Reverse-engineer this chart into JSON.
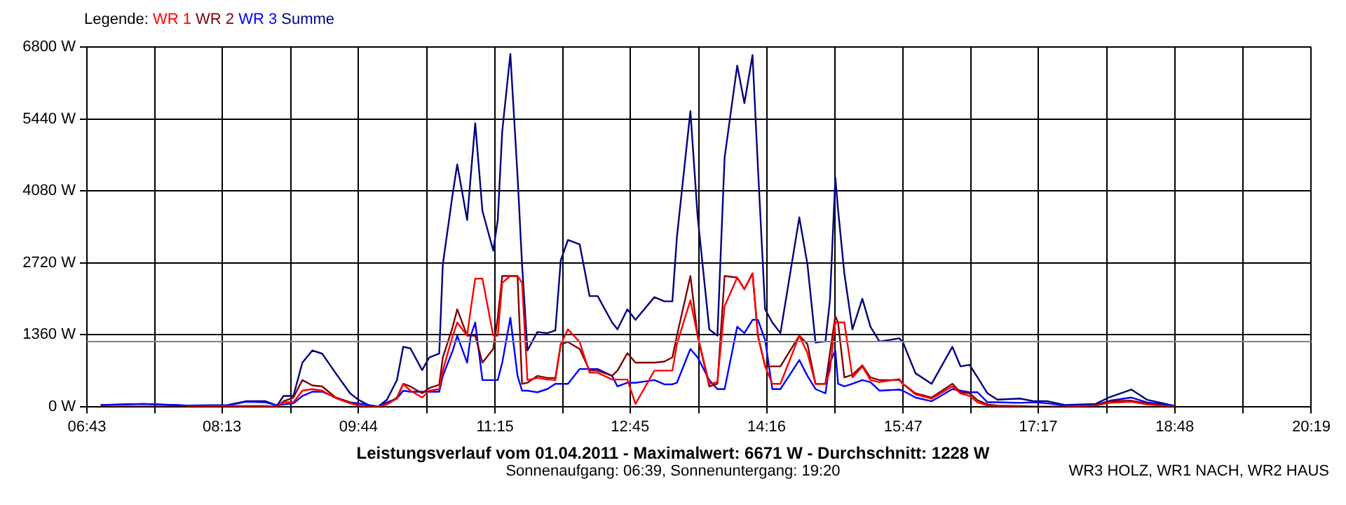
{
  "chart_data": {
    "type": "line",
    "title": "Leistungsverlauf vom 01.04.2011 - Maximalwert: 6671 W - Durchschnitt: 1228 W",
    "subtitle": "Sonnenaufgang: 06:39, Sonnenuntergang: 19:20",
    "annotations": [
      "WR3 HOLZ, WR1 NACH, WR2 HAUS"
    ],
    "legend_title": "Legende:",
    "legend": "top left",
    "grid": true,
    "xlim": [
      6.7167,
      20.3167
    ],
    "xticks": [
      {
        "value": 6.7167,
        "label": "06:43"
      },
      {
        "value": 7.4722,
        "label": null
      },
      {
        "value": 8.2167,
        "label": "08:13"
      },
      {
        "value": 8.9833,
        "label": null
      },
      {
        "value": 9.7333,
        "label": "09:44"
      },
      {
        "value": 10.4944,
        "label": null
      },
      {
        "value": 11.25,
        "label": "11:15"
      },
      {
        "value": 12.0056,
        "label": null
      },
      {
        "value": 12.75,
        "label": "12:45"
      },
      {
        "value": 13.5167,
        "label": null
      },
      {
        "value": 14.2667,
        "label": "14:16"
      },
      {
        "value": 15.0278,
        "label": null
      },
      {
        "value": 15.7833,
        "label": "15:47"
      },
      {
        "value": 16.5389,
        "label": null
      },
      {
        "value": 17.2833,
        "label": "17:17"
      },
      {
        "value": 18.05,
        "label": null
      },
      {
        "value": 18.8,
        "label": "18:48"
      },
      {
        "value": 19.5611,
        "label": null
      },
      {
        "value": 20.3167,
        "label": "20:19"
      }
    ],
    "ylim": [
      0,
      6800
    ],
    "yticks": [
      {
        "value": 0,
        "label": "0 W"
      },
      {
        "value": 1360,
        "label": "1360 W"
      },
      {
        "value": 2720,
        "label": "2720 W"
      },
      {
        "value": 4080,
        "label": "4080 W"
      },
      {
        "value": 5440,
        "label": "5440 W"
      },
      {
        "value": 6800,
        "label": "6800 W"
      }
    ],
    "ref_lines": [
      {
        "axis": "y",
        "value": 1228,
        "color": "#808080"
      }
    ],
    "x": [
      6.87,
      7.34,
      7.81,
      8.28,
      8.48,
      8.7,
      8.83,
      8.9,
      9.01,
      9.11,
      9.22,
      9.33,
      9.48,
      9.64,
      9.73,
      9.84,
      9.95,
      10.05,
      10.16,
      10.23,
      10.31,
      10.44,
      10.52,
      10.63,
      10.67,
      10.78,
      10.83,
      10.94,
      10.98,
      11.03,
      11.11,
      11.23,
      11.28,
      11.33,
      11.42,
      11.5,
      11.55,
      11.61,
      11.72,
      11.83,
      11.92,
      11.98,
      12.06,
      12.19,
      12.3,
      12.39,
      12.55,
      12.61,
      12.72,
      12.81,
      13.02,
      13.13,
      13.22,
      13.27,
      13.42,
      13.5,
      13.63,
      13.72,
      13.8,
      13.94,
      14.02,
      14.11,
      14.17,
      14.25,
      14.33,
      14.42,
      14.63,
      14.72,
      14.81,
      14.92,
      14.97,
      15.03,
      15.06,
      15.13,
      15.22,
      15.33,
      15.42,
      15.52,
      15.74,
      15.78,
      15.92,
      16.1,
      16.33,
      16.42,
      16.52,
      16.61,
      16.72,
      16.83,
      17.08,
      17.24,
      17.39,
      17.58,
      17.92,
      18.08,
      18.32,
      18.49,
      18.78,
      18.8
    ],
    "series": [
      {
        "name": "WR 1",
        "color": "#ff0000",
        "values": [
          null,
          null,
          0,
          10,
          10,
          10,
          0,
          80,
          80,
          300,
          330,
          300,
          160,
          60,
          20,
          0,
          0,
          40,
          150,
          420,
          300,
          170,
          300,
          330,
          680,
          1340,
          1590,
          1340,
          1840,
          2420,
          2420,
          1340,
          1340,
          2340,
          2470,
          2470,
          2340,
          500,
          540,
          510,
          500,
          1180,
          1460,
          1220,
          640,
          640,
          510,
          510,
          510,
          50,
          680,
          680,
          680,
          1180,
          2010,
          1340,
          430,
          460,
          1900,
          2440,
          2220,
          2520,
          1340,
          760,
          430,
          430,
          1340,
          1010,
          430,
          430,
          680,
          1590,
          1590,
          1590,
          550,
          760,
          500,
          460,
          520,
          430,
          230,
          150,
          380,
          250,
          200,
          80,
          20,
          10,
          0,
          null,
          null,
          0,
          20,
          70,
          90,
          40,
          0,
          0
        ]
      },
      {
        "name": "WR 2",
        "color": "#800000",
        "values": [
          0,
          0,
          0,
          10,
          10,
          10,
          0,
          100,
          170,
          500,
          400,
          380,
          170,
          80,
          20,
          0,
          0,
          40,
          170,
          430,
          380,
          250,
          350,
          410,
          930,
          1510,
          1840,
          1340,
          1340,
          1340,
          830,
          1090,
          1680,
          2470,
          2470,
          2470,
          430,
          450,
          580,
          540,
          540,
          1180,
          1220,
          1090,
          680,
          680,
          580,
          680,
          1010,
          830,
          830,
          850,
          930,
          1340,
          2470,
          1340,
          380,
          430,
          2470,
          2440,
          2220,
          2520,
          1340,
          760,
          760,
          760,
          1340,
          1180,
          430,
          430,
          1010,
          1710,
          1590,
          550,
          600,
          780,
          550,
          500,
          500,
          430,
          250,
          170,
          430,
          270,
          250,
          120,
          40,
          20,
          10,
          0,
          0,
          0,
          20,
          100,
          110,
          60,
          0,
          0
        ]
      },
      {
        "name": "WR 3",
        "color": "#0000ff",
        "values": [
          30,
          50,
          20,
          20,
          90,
          80,
          20,
          40,
          60,
          200,
          280,
          280,
          170,
          80,
          60,
          30,
          0,
          80,
          150,
          300,
          280,
          280,
          280,
          280,
          580,
          1060,
          1340,
          830,
          1340,
          1590,
          500,
          500,
          500,
          830,
          1680,
          580,
          300,
          300,
          270,
          330,
          430,
          430,
          430,
          710,
          710,
          710,
          580,
          380,
          450,
          450,
          500,
          420,
          420,
          450,
          1090,
          930,
          500,
          330,
          330,
          1510,
          1390,
          1640,
          1640,
          1260,
          330,
          330,
          880,
          580,
          330,
          250,
          830,
          1060,
          430,
          380,
          430,
          500,
          460,
          300,
          320,
          300,
          170,
          100,
          330,
          300,
          270,
          270,
          80,
          80,
          70,
          80,
          60,
          20,
          30,
          110,
          170,
          80,
          20,
          0
        ]
      },
      {
        "name": "Summe",
        "color": "#000080",
        "values": [
          30,
          50,
          20,
          30,
          100,
          100,
          20,
          200,
          200,
          830,
          1060,
          1000,
          630,
          250,
          130,
          30,
          0,
          130,
          500,
          1130,
          1100,
          690,
          930,
          1000,
          2690,
          4030,
          4580,
          3530,
          4360,
          5360,
          3700,
          2950,
          3530,
          5210,
          6671,
          4360,
          2690,
          1060,
          1410,
          1390,
          1440,
          2770,
          3150,
          3070,
          2090,
          2090,
          1590,
          1460,
          1840,
          1640,
          2070,
          1990,
          1990,
          3200,
          5590,
          3600,
          1460,
          1340,
          4710,
          6450,
          5740,
          6650,
          4530,
          1840,
          1590,
          1390,
          3580,
          2690,
          1210,
          1230,
          2010,
          4330,
          3730,
          2520,
          1460,
          2040,
          1510,
          1230,
          1290,
          1220,
          630,
          430,
          1130,
          760,
          790,
          550,
          250,
          130,
          150,
          100,
          100,
          30,
          50,
          180,
          320,
          130,
          20,
          0
        ]
      }
    ]
  }
}
